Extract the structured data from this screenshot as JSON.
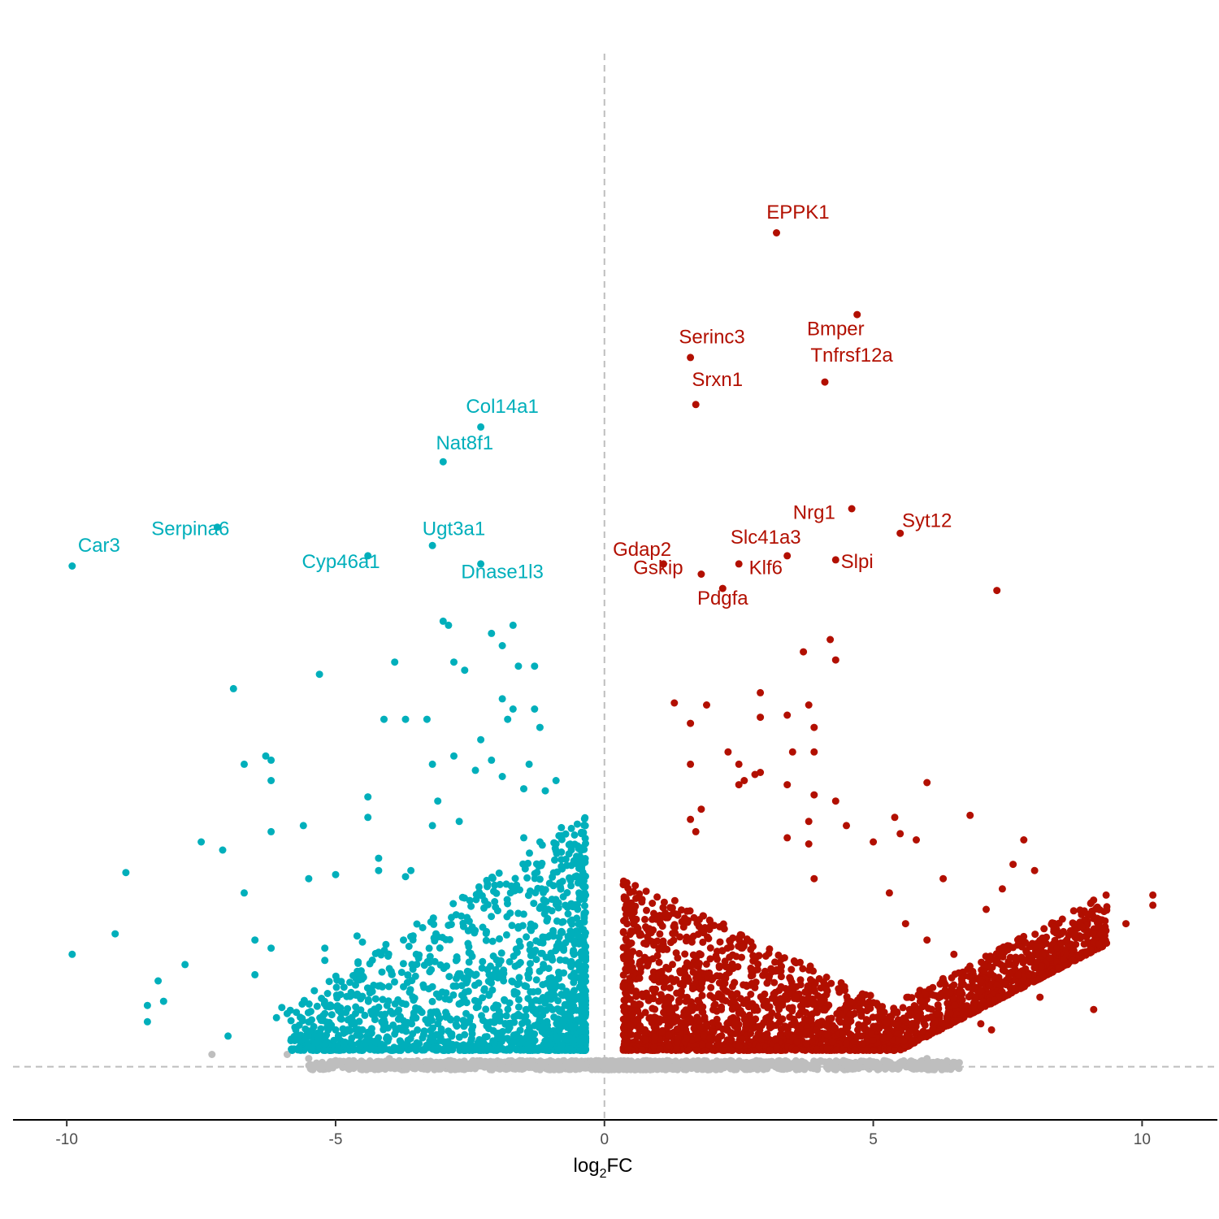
{
  "chart_data": {
    "type": "scatter",
    "title": "",
    "xlabel_main": "log",
    "xlabel_sub": "2",
    "xlabel_tail": "FC",
    "ylabel": "",
    "xlim": [
      -11,
      11.4
    ],
    "ylim": [
      -2.6,
      51
    ],
    "xticks": [
      -10,
      -5,
      0,
      5,
      10
    ],
    "xtick_labels": [
      "-10",
      "-5",
      "0",
      "5",
      "10"
    ],
    "grid": false,
    "legend": "none",
    "reference_lines": {
      "vertical_x": 0,
      "horizontal_y": 0
    },
    "colors": {
      "up": "#B20F00",
      "down": "#00AFBB",
      "ns": "#BEBEBE"
    },
    "series": [
      {
        "group": "down",
        "points": [
          [
            -9.9,
            5.5
          ],
          [
            -9.1,
            6.5
          ],
          [
            -8.9,
            9.5
          ],
          [
            -8.3,
            4.2
          ],
          [
            -8.5,
            3.0
          ],
          [
            -8.5,
            2.2
          ],
          [
            -8.2,
            3.2
          ],
          [
            -7.8,
            5.0
          ],
          [
            -7.5,
            11.0
          ],
          [
            -6.9,
            18.5
          ],
          [
            -6.7,
            14.8
          ],
          [
            -6.7,
            8.5
          ],
          [
            -7.1,
            10.6
          ],
          [
            -7.0,
            1.5
          ],
          [
            -6.3,
            15.2
          ],
          [
            -6.2,
            15.0
          ],
          [
            -6.2,
            14.0
          ],
          [
            -6.2,
            11.5
          ],
          [
            -6.5,
            6.2
          ],
          [
            -6.2,
            5.8
          ],
          [
            -6.5,
            4.5
          ],
          [
            -6.0,
            2.9
          ],
          [
            -6.1,
            2.4
          ],
          [
            -5.9,
            2.6
          ],
          [
            -5.6,
            11.8
          ],
          [
            -5.5,
            9.2
          ],
          [
            -5.3,
            19.2
          ],
          [
            -5.2,
            5.8
          ],
          [
            -5.2,
            5.2
          ],
          [
            -5.0,
            9.4
          ],
          [
            -5.2,
            2.6
          ],
          [
            -5.0,
            1.8
          ],
          [
            -4.6,
            6.4
          ],
          [
            -4.5,
            6.1
          ],
          [
            -4.5,
            1.8
          ],
          [
            -4.7,
            1.4
          ],
          [
            -4.6,
            3.5
          ],
          [
            -4.4,
            13.2
          ],
          [
            -4.4,
            12.2
          ],
          [
            -4.2,
            10.2
          ],
          [
            -4.2,
            9.6
          ],
          [
            -4.1,
            17.0
          ],
          [
            -4.2,
            5.6
          ],
          [
            -4.0,
            4.8
          ],
          [
            -3.9,
            1.6
          ],
          [
            -3.9,
            19.8
          ],
          [
            -3.7,
            17.0
          ],
          [
            -3.6,
            9.6
          ],
          [
            -3.7,
            9.3
          ],
          [
            -3.5,
            5.5
          ],
          [
            -3.3,
            17.0
          ],
          [
            -3.2,
            14.8
          ],
          [
            -3.2,
            11.8
          ],
          [
            -3.1,
            13.0
          ],
          [
            -3.0,
            21.8
          ],
          [
            -2.9,
            21.6
          ],
          [
            -2.8,
            19.8
          ],
          [
            -2.8,
            15.2
          ],
          [
            -2.7,
            12.0
          ],
          [
            -2.6,
            19.4
          ],
          [
            -2.4,
            14.5
          ],
          [
            -2.3,
            16.0
          ],
          [
            -2.1,
            15.0
          ],
          [
            -2.1,
            21.2
          ],
          [
            -1.9,
            20.6
          ],
          [
            -1.9,
            18.0
          ],
          [
            -1.8,
            17.0
          ],
          [
            -1.7,
            17.5
          ],
          [
            -1.9,
            14.2
          ],
          [
            -1.6,
            19.6
          ],
          [
            -1.3,
            19.6
          ],
          [
            -1.3,
            17.5
          ],
          [
            -1.2,
            16.6
          ],
          [
            -1.1,
            13.5
          ],
          [
            -0.9,
            14.0
          ],
          [
            -0.8,
            11.7
          ],
          [
            -0.8,
            11.3
          ],
          [
            -1.7,
            21.6
          ],
          [
            -1.4,
            14.8
          ],
          [
            -1.5,
            13.6
          ],
          [
            -1.2,
            11.0
          ],
          [
            -1.5,
            11.2
          ],
          [
            -0.8,
            10.5
          ],
          [
            -0.9,
            10.9
          ],
          [
            -0.8,
            9.8
          ]
        ]
      },
      {
        "group": "up",
        "points": [
          [
            1.3,
            17.8
          ],
          [
            1.6,
            16.8
          ],
          [
            1.9,
            17.7
          ],
          [
            1.6,
            14.8
          ],
          [
            2.3,
            15.4
          ],
          [
            2.5,
            14.8
          ],
          [
            2.9,
            18.3
          ],
          [
            2.9,
            17.1
          ],
          [
            3.4,
            17.2
          ],
          [
            3.8,
            17.7
          ],
          [
            2.9,
            14.4
          ],
          [
            2.8,
            14.3
          ],
          [
            3.5,
            15.4
          ],
          [
            3.4,
            13.8
          ],
          [
            2.5,
            13.8
          ],
          [
            2.6,
            14.0
          ],
          [
            3.9,
            15.4
          ],
          [
            3.9,
            13.3
          ],
          [
            3.9,
            16.6
          ],
          [
            4.2,
            20.9
          ],
          [
            4.3,
            19.9
          ],
          [
            3.7,
            20.3
          ],
          [
            4.3,
            13.0
          ],
          [
            3.8,
            12.0
          ],
          [
            3.8,
            10.9
          ],
          [
            3.4,
            11.2
          ],
          [
            3.9,
            9.2
          ],
          [
            1.8,
            12.6
          ],
          [
            1.6,
            12.1
          ],
          [
            1.7,
            11.5
          ],
          [
            5.4,
            12.2
          ],
          [
            5.5,
            11.4
          ],
          [
            5.8,
            11.1
          ],
          [
            6.0,
            13.9
          ],
          [
            6.8,
            12.3
          ],
          [
            7.8,
            11.1
          ],
          [
            7.6,
            9.9
          ],
          [
            8.0,
            9.6
          ],
          [
            7.4,
            8.7
          ],
          [
            7.1,
            7.7
          ],
          [
            6.3,
            9.2
          ],
          [
            5.3,
            8.5
          ],
          [
            5.6,
            7.0
          ],
          [
            6.0,
            6.2
          ],
          [
            6.5,
            5.5
          ],
          [
            7.7,
            4.5
          ],
          [
            8.1,
            3.4
          ],
          [
            9.1,
            2.8
          ],
          [
            9.7,
            7.0
          ],
          [
            10.2,
            8.4
          ],
          [
            10.2,
            7.9
          ],
          [
            7.0,
            2.1
          ],
          [
            7.2,
            1.8
          ],
          [
            5.0,
            11.0
          ],
          [
            4.5,
            11.8
          ],
          [
            5.9,
            3.2
          ],
          [
            9.2,
            6.0
          ],
          [
            8.6,
            6.2
          ],
          [
            7.5,
            5.0
          ],
          [
            6.5,
            4.0
          ]
        ]
      },
      {
        "group": "down",
        "role": "labeled",
        "points": [
          [
            -9.9,
            24.5
          ],
          [
            -7.2,
            26.4
          ],
          [
            -4.4,
            25.0
          ],
          [
            -3.2,
            25.5
          ],
          [
            -2.3,
            24.6
          ],
          [
            -3.0,
            29.6
          ],
          [
            -2.3,
            31.3
          ]
        ],
        "labels": [
          "Car3",
          "Serpina6",
          "Cyp46a1",
          "Ugt3a1",
          "Dnase1l3",
          "Nat8f1",
          "Col14a1"
        ]
      },
      {
        "group": "up",
        "role": "labeled",
        "points": [
          [
            3.2,
            40.8
          ],
          [
            4.7,
            36.8
          ],
          [
            1.6,
            34.7
          ],
          [
            4.1,
            33.5
          ],
          [
            1.7,
            32.4
          ],
          [
            4.6,
            27.3
          ],
          [
            5.5,
            26.1
          ],
          [
            3.4,
            25.0
          ],
          [
            1.1,
            24.6
          ],
          [
            2.5,
            24.6
          ],
          [
            4.3,
            24.8
          ],
          [
            1.8,
            24.1
          ],
          [
            2.2,
            23.4
          ],
          [
            7.3,
            23.3
          ]
        ],
        "labels": [
          "EPPK1",
          "Bmper",
          "Serinc3",
          "Tnfrsf12a",
          "Srxn1",
          "Nrg1",
          "Syt12",
          "Slc41a3",
          "Gdap2",
          "",
          "Slpi",
          "Gskip",
          "Klf6",
          ""
        ]
      }
    ],
    "gene_labels": [
      {
        "text": "EPPK1",
        "group": "up",
        "x": 3.6,
        "y": 41.5
      },
      {
        "text": "Bmper",
        "group": "up",
        "x": 4.3,
        "y": 35.8
      },
      {
        "text": "Serinc3",
        "group": "up",
        "x": 2.0,
        "y": 35.4
      },
      {
        "text": "Tnfrsf12a",
        "group": "up",
        "x": 4.6,
        "y": 34.5
      },
      {
        "text": "Srxn1",
        "group": "up",
        "x": 2.1,
        "y": 33.3
      },
      {
        "text": "Nrg1",
        "group": "up",
        "x": 3.9,
        "y": 26.8
      },
      {
        "text": "Syt12",
        "group": "up",
        "x": 6.0,
        "y": 26.4
      },
      {
        "text": "Slc41a3",
        "group": "up",
        "x": 3.0,
        "y": 25.6
      },
      {
        "text": "Gdap2",
        "group": "up",
        "x": 0.7,
        "y": 25.0
      },
      {
        "text": "Gskip",
        "group": "up",
        "x": 1.0,
        "y": 24.1
      },
      {
        "text": "Klf6",
        "group": "up",
        "x": 3.0,
        "y": 24.1
      },
      {
        "text": "Slpi",
        "group": "up",
        "x": 4.7,
        "y": 24.4
      },
      {
        "text": "Pdgfa",
        "group": "up",
        "x": 2.2,
        "y": 22.6
      },
      {
        "text": "Car3",
        "group": "down",
        "x": -9.4,
        "y": 25.2
      },
      {
        "text": "Serpina6",
        "group": "down",
        "x": -7.7,
        "y": 26.0
      },
      {
        "text": "Cyp46a1",
        "group": "down",
        "x": -4.9,
        "y": 24.4
      },
      {
        "text": "Ugt3a1",
        "group": "down",
        "x": -2.8,
        "y": 26.0
      },
      {
        "text": "Dnase1l3",
        "group": "down",
        "x": -1.9,
        "y": 23.9
      },
      {
        "text": "Nat8f1",
        "group": "down",
        "x": -2.6,
        "y": 30.2
      },
      {
        "text": "Col14a1",
        "group": "down",
        "x": -1.9,
        "y": 32.0
      }
    ]
  }
}
